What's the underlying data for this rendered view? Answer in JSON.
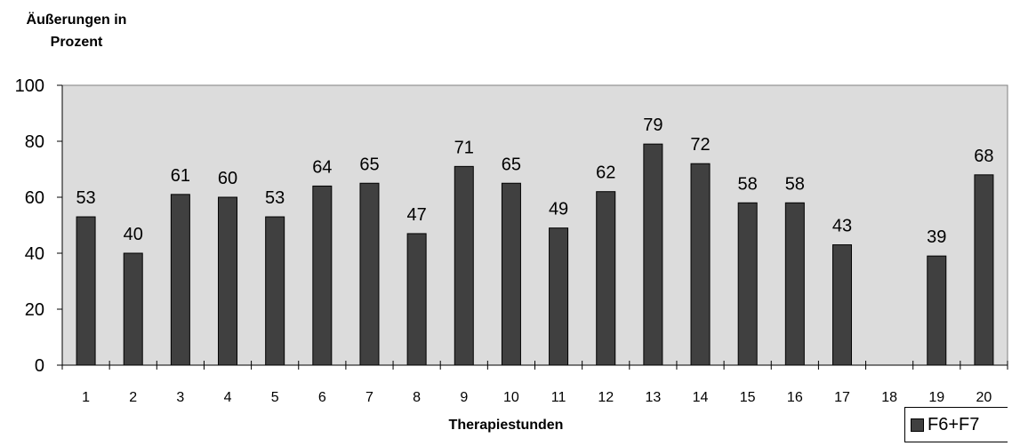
{
  "chart_data": {
    "type": "bar",
    "title": "",
    "ylabel_lines": [
      "Äußerungen in",
      "Prozent"
    ],
    "xlabel": "Therapiestunden",
    "categories": [
      "1",
      "2",
      "3",
      "4",
      "5",
      "6",
      "7",
      "8",
      "9",
      "10",
      "11",
      "12",
      "13",
      "14",
      "15",
      "16",
      "17",
      "18",
      "19",
      "20"
    ],
    "series": [
      {
        "name": "F6+F7",
        "values": [
          53,
          40,
          61,
          60,
          53,
          64,
          65,
          47,
          71,
          65,
          49,
          62,
          79,
          72,
          58,
          58,
          43,
          null,
          39,
          68
        ],
        "color": "#404040"
      }
    ],
    "ylim": [
      0,
      100
    ],
    "yticks": [
      0,
      20,
      40,
      60,
      80,
      100
    ],
    "data_labels": true,
    "grid": false,
    "plot_background": "#dcdcdc",
    "legend_position": "bottom-right"
  }
}
